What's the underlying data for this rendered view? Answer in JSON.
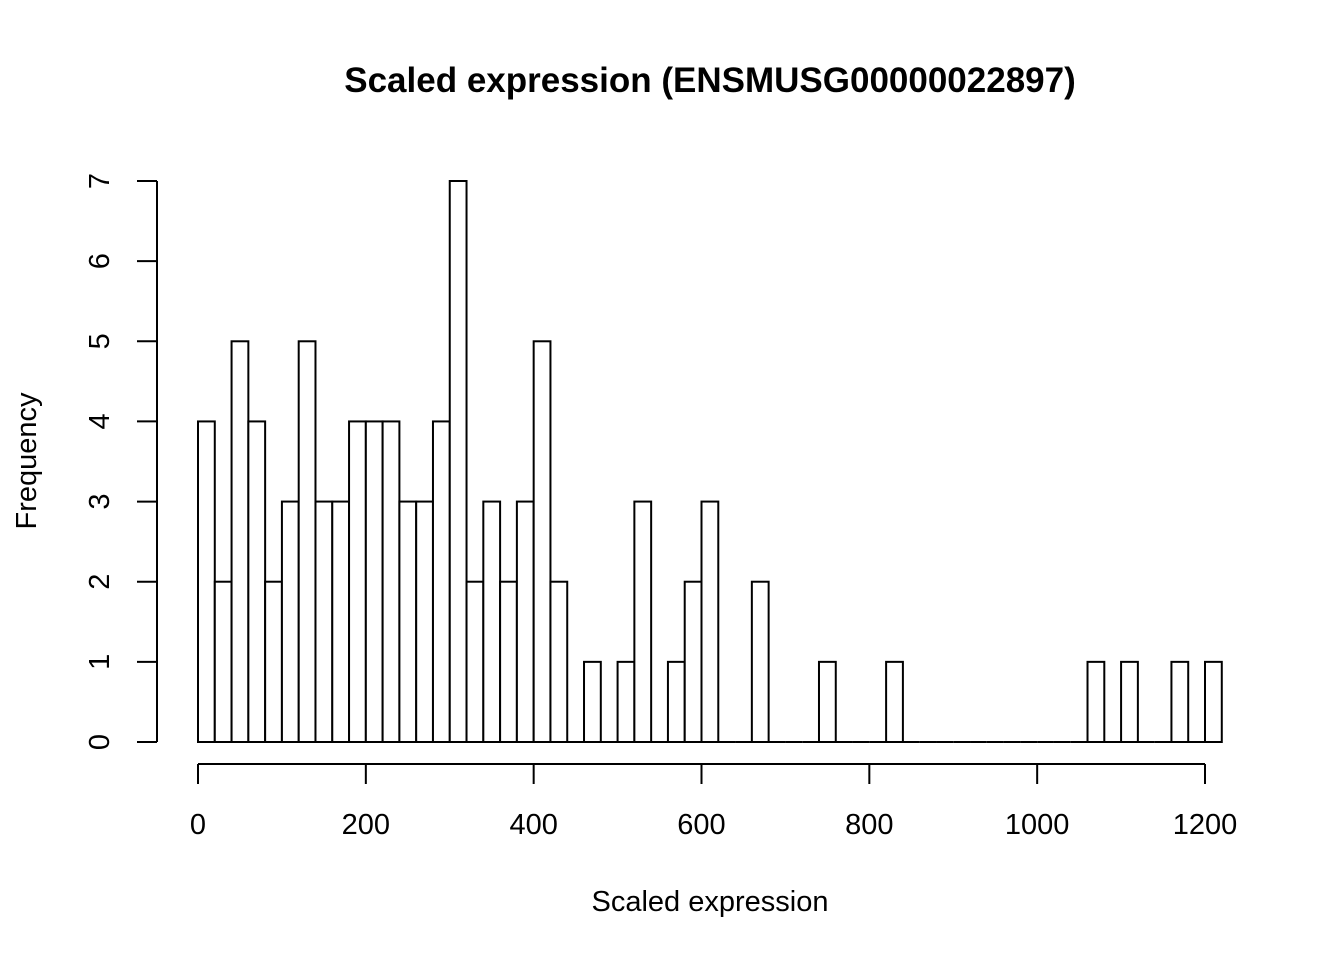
{
  "chart_data": {
    "type": "bar",
    "title": "Scaled expression (ENSMUSG00000022897)",
    "xlabel": "Scaled expression",
    "ylabel": "Frequency",
    "bin_width": 20,
    "bin_start": 0,
    "values": [
      4,
      2,
      5,
      4,
      2,
      3,
      5,
      3,
      3,
      4,
      4,
      4,
      3,
      3,
      4,
      7,
      2,
      3,
      2,
      3,
      5,
      2,
      0,
      1,
      0,
      1,
      3,
      0,
      1,
      2,
      3,
      0,
      0,
      2,
      0,
      0,
      0,
      1,
      0,
      0,
      0,
      1,
      0,
      0,
      0,
      0,
      0,
      0,
      0,
      0,
      0,
      0,
      0,
      1,
      0,
      1,
      0,
      0,
      1,
      0,
      1
    ],
    "xlim": [
      0,
      1220
    ],
    "ylim": [
      0,
      7
    ],
    "x_ticks": [
      "0",
      "200",
      "400",
      "600",
      "800",
      "1000",
      "1200"
    ],
    "y_ticks": [
      "0",
      "1",
      "2",
      "3",
      "4",
      "5",
      "6",
      "7"
    ],
    "grid": false,
    "colors": {
      "bar_fill": "#ffffff",
      "bar_stroke": "#000000"
    }
  }
}
